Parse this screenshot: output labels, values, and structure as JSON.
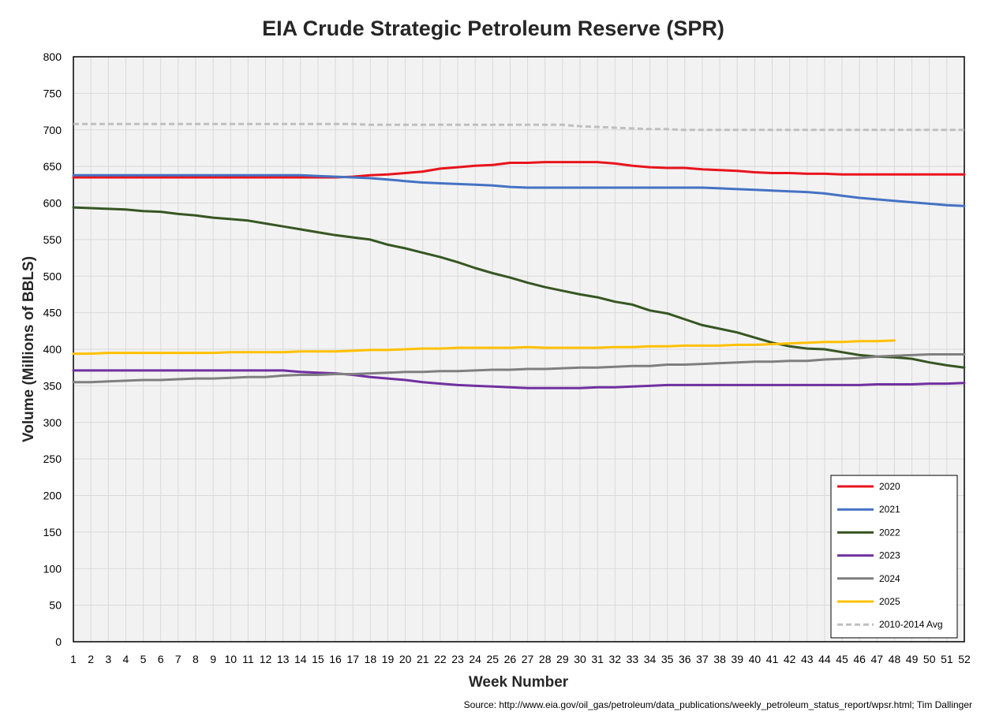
{
  "chart_data": {
    "type": "line",
    "title": "EIA Crude Strategic Petroleum Reserve (SPR)",
    "xlabel": "Week Number",
    "ylabel": "Volume (Millions of BBLS)",
    "source": "Source: http://www.eia.gov/oil_gas/petroleum/data_publications/weekly_petroleum_status_report/wpsr.html; Tim Dallinger",
    "xlim": [
      1,
      52
    ],
    "ylim": [
      0,
      800
    ],
    "y_ticks": [
      0,
      50,
      100,
      150,
      200,
      250,
      300,
      350,
      400,
      450,
      500,
      550,
      600,
      650,
      700,
      750,
      800
    ],
    "x_ticks": [
      1,
      2,
      3,
      4,
      5,
      6,
      7,
      8,
      9,
      10,
      11,
      12,
      13,
      14,
      15,
      16,
      17,
      18,
      19,
      20,
      21,
      22,
      23,
      24,
      25,
      26,
      27,
      28,
      29,
      30,
      31,
      32,
      33,
      34,
      35,
      36,
      37,
      38,
      39,
      40,
      41,
      42,
      43,
      44,
      45,
      46,
      47,
      48,
      49,
      50,
      51,
      52
    ],
    "grid": true,
    "legend_position": "bottom-right",
    "series": [
      {
        "name": "2020",
        "color": "#e8141c",
        "dash": false,
        "values": [
          635,
          635,
          635,
          635,
          635,
          635,
          635,
          635,
          635,
          635,
          635,
          635,
          635,
          635,
          635,
          635,
          636,
          638,
          639,
          641,
          643,
          647,
          649,
          651,
          652,
          655,
          655,
          656,
          656,
          656,
          656,
          654,
          651,
          649,
          648,
          648,
          646,
          645,
          644,
          642,
          641,
          641,
          640,
          640,
          639,
          639,
          639,
          639,
          639,
          639,
          639,
          639
        ]
      },
      {
        "name": "2021",
        "color": "#4472c4",
        "dash": false,
        "values": [
          638,
          638,
          638,
          638,
          638,
          638,
          638,
          638,
          638,
          638,
          638,
          638,
          638,
          638,
          637,
          636,
          635,
          634,
          632,
          630,
          628,
          627,
          626,
          625,
          624,
          622,
          621,
          621,
          621,
          621,
          621,
          621,
          621,
          621,
          621,
          621,
          621,
          620,
          619,
          618,
          617,
          616,
          615,
          613,
          610,
          607,
          605,
          603,
          601,
          599,
          597,
          596
        ]
      },
      {
        "name": "2022",
        "color": "#375623",
        "dash": false,
        "values": [
          594,
          593,
          592,
          591,
          589,
          588,
          585,
          583,
          580,
          578,
          576,
          572,
          568,
          564,
          560,
          556,
          553,
          550,
          543,
          538,
          532,
          526,
          519,
          511,
          504,
          498,
          491,
          485,
          480,
          475,
          471,
          465,
          461,
          453,
          449,
          441,
          433,
          428,
          423,
          416,
          409,
          404,
          401,
          400,
          396,
          392,
          390,
          389,
          387,
          382,
          378,
          375
        ]
      },
      {
        "name": "2023",
        "color": "#7030a0",
        "dash": false,
        "values": [
          371,
          371,
          371,
          371,
          371,
          371,
          371,
          371,
          371,
          371,
          371,
          371,
          371,
          369,
          368,
          367,
          365,
          362,
          360,
          358,
          355,
          353,
          351,
          350,
          349,
          348,
          347,
          347,
          347,
          347,
          348,
          348,
          349,
          350,
          351,
          351,
          351,
          351,
          351,
          351,
          351,
          351,
          351,
          351,
          351,
          351,
          352,
          352,
          352,
          353,
          353,
          354
        ]
      },
      {
        "name": "2024",
        "color": "#7f7f7f",
        "dash": false,
        "values": [
          355,
          355,
          356,
          357,
          358,
          358,
          359,
          360,
          360,
          361,
          362,
          362,
          364,
          365,
          365,
          366,
          366,
          367,
          368,
          369,
          369,
          370,
          370,
          371,
          372,
          372,
          373,
          373,
          374,
          375,
          375,
          376,
          377,
          377,
          379,
          379,
          380,
          381,
          382,
          383,
          383,
          384,
          384,
          386,
          387,
          388,
          390,
          391,
          392,
          393,
          393,
          393
        ]
      },
      {
        "name": "2025",
        "color": "#ffc000",
        "dash": false,
        "values": [
          394,
          394,
          395,
          395,
          395,
          395,
          395,
          395,
          395,
          396,
          396,
          396,
          396,
          397,
          397,
          397,
          398,
          399,
          399,
          400,
          401,
          401,
          402,
          402,
          402,
          402,
          403,
          402,
          402,
          402,
          402,
          403,
          403,
          404,
          404,
          405,
          405,
          405,
          406,
          406,
          407,
          408,
          409,
          410,
          410,
          411,
          411,
          412
        ]
      },
      {
        "name": "2010-2014 Avg",
        "color": "#bfbfbf",
        "dash": true,
        "values": [
          708,
          708,
          708,
          708,
          708,
          708,
          708,
          708,
          708,
          708,
          708,
          708,
          708,
          708,
          708,
          708,
          708,
          707,
          707,
          707,
          707,
          707,
          707,
          707,
          707,
          707,
          707,
          707,
          707,
          705,
          704,
          703,
          702,
          701,
          701,
          700,
          700,
          700,
          700,
          700,
          700,
          700,
          700,
          700,
          700,
          700,
          700,
          700,
          700,
          700,
          700,
          700
        ]
      }
    ]
  }
}
